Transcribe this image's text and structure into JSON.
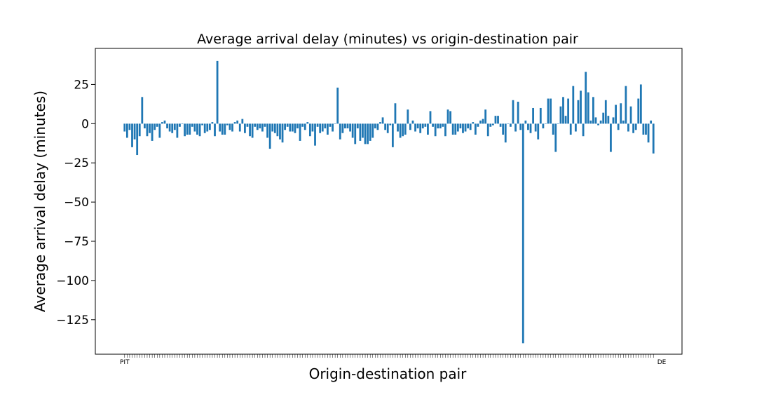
{
  "chart_data": {
    "type": "bar",
    "title": "Average arrival delay (minutes) vs origin-destination pair",
    "xlabel": "Origin-destination pair",
    "ylabel": "Average arrival delay (minutes)",
    "ylim": [
      -147,
      48
    ],
    "yticks": [
      25,
      0,
      -25,
      -50,
      -75,
      -100,
      -125
    ],
    "ytick_labels": [
      "25",
      "0",
      "−25",
      "−50",
      "−75",
      "−100",
      "−125"
    ],
    "x_tick_labels_visible": {
      "first": "PIT",
      "last": "DE"
    },
    "color": "#1f77b4",
    "grid": false,
    "values": [
      -5,
      -9,
      -4,
      -15,
      -10,
      -20,
      -8,
      17,
      -3,
      -8,
      -6,
      -11,
      -4,
      -2,
      -9,
      1,
      2,
      -3,
      -5,
      -6,
      -4,
      -9,
      -2,
      0,
      -8,
      -7,
      -7,
      -2,
      -5,
      -7,
      -8,
      -1,
      -6,
      -5,
      -4,
      1,
      -8,
      40,
      -5,
      -7,
      -7,
      -1,
      -4,
      -5,
      1,
      2,
      -5,
      3,
      -6,
      -2,
      -8,
      -9,
      -2,
      -4,
      -3,
      -5,
      -2,
      -9,
      -16,
      -5,
      -6,
      -8,
      -10,
      -12,
      -4,
      -2,
      -5,
      -5,
      -6,
      -3,
      -11,
      -2,
      -4,
      1,
      -8,
      -5,
      -14,
      -2,
      -6,
      -5,
      -3,
      -7,
      -2,
      -5,
      0,
      23,
      -10,
      -6,
      -3,
      -3,
      -5,
      -9,
      -13,
      -3,
      -11,
      -9,
      -13,
      -13,
      -11,
      -9,
      -3,
      -4,
      1,
      4,
      -4,
      -6,
      -1,
      -15,
      13,
      -5,
      -9,
      -8,
      -7,
      9,
      -4,
      2,
      -5,
      -3,
      -6,
      -3,
      -2,
      -7,
      8,
      -2,
      -8,
      -3,
      -3,
      -2,
      -8,
      9,
      8,
      -7,
      -7,
      -5,
      -3,
      -6,
      -5,
      -3,
      -4,
      1,
      -7,
      -2,
      2,
      3,
      9,
      -8,
      -2,
      -1,
      5,
      5,
      -2,
      -7,
      -12,
      0,
      -2,
      15,
      -5,
      14,
      -4,
      -140,
      2,
      -4,
      -6,
      10,
      -5,
      -10,
      10,
      -3,
      0,
      16,
      16,
      -7,
      -18,
      0,
      11,
      17,
      5,
      16,
      -7,
      24,
      -5,
      15,
      21,
      -8,
      33,
      20,
      2,
      17,
      4,
      -1,
      2,
      7,
      15,
      5,
      -18,
      4,
      12,
      -4,
      13,
      2,
      24,
      -5,
      11,
      -6,
      -4,
      16,
      25,
      -7,
      -7,
      -12,
      2,
      -19
    ]
  }
}
